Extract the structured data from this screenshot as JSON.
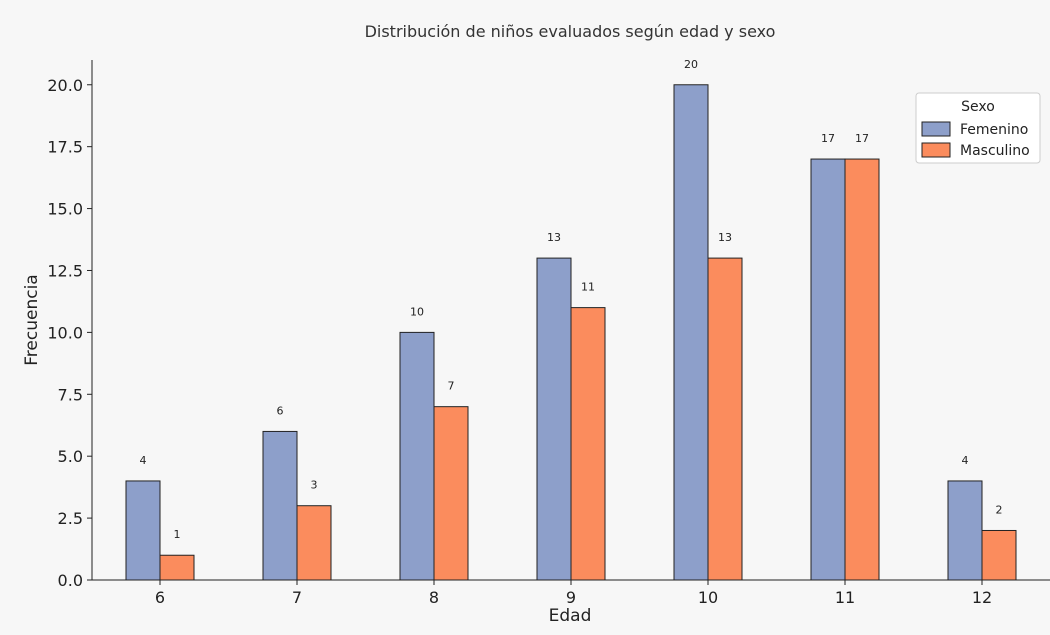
{
  "chart_data": {
    "type": "bar",
    "title": "Distribución de niños evaluados según edad y sexo",
    "xlabel": "Edad",
    "ylabel": "Frecuencia",
    "categories": [
      "6",
      "7",
      "8",
      "9",
      "10",
      "11",
      "12"
    ],
    "series": [
      {
        "name": "Femenino",
        "values": [
          4,
          6,
          10,
          13,
          20,
          17,
          4
        ],
        "color": "#8d9fca"
      },
      {
        "name": "Masculino",
        "values": [
          1,
          3,
          7,
          11,
          13,
          17,
          2
        ],
        "color": "#fb8c5d"
      }
    ],
    "ylim": [
      0,
      21
    ],
    "yticks": [
      "0.0",
      "2.5",
      "5.0",
      "7.5",
      "10.0",
      "12.5",
      "15.0",
      "17.5",
      "20.0"
    ],
    "grid": false,
    "legend": {
      "title": "Sexo",
      "position": "top-right"
    },
    "background_color": "#f7f7f7"
  }
}
